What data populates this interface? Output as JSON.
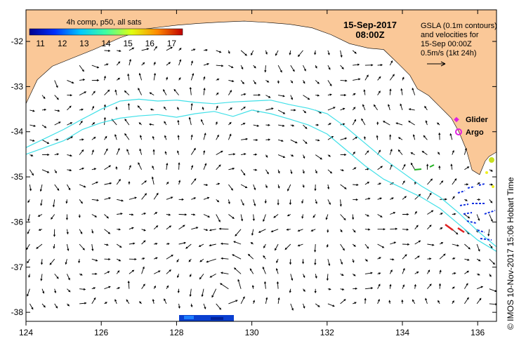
{
  "title": {
    "date": "15-Sep-2017",
    "time": "08:00Z"
  },
  "colorbar": {
    "label": "4h comp, p50, all sats",
    "ticks": [
      "11",
      "12",
      "13",
      "14",
      "15",
      "16",
      "17"
    ],
    "min": 10.5,
    "max": 17.5,
    "stops": [
      "#00008f",
      "#0030ff",
      "#00c8ff",
      "#40ff9f",
      "#e0ff10",
      "#ff8a00",
      "#c00000"
    ]
  },
  "legend": {
    "lines": [
      "GSLA (0.1m contours)",
      "and velocities for",
      "15-Sep 00:00Z",
      "0.5m/s (1kt 24h)"
    ],
    "glider_label": "Glider",
    "argo_label": "Argo",
    "glider_color": "#e020e0",
    "argo_color": "#e020e0"
  },
  "copyright": "© IMOS 10-Nov-2017 15:06 Hobart Time",
  "axes": {
    "x_ticks": [
      124,
      126,
      128,
      130,
      132,
      134,
      136
    ],
    "y_ticks": [
      -32,
      -33,
      -34,
      -35,
      -36,
      -37,
      -38
    ],
    "x_labels": [
      "124",
      "126",
      "128",
      "130",
      "132",
      "134",
      "136"
    ],
    "y_labels": [
      "-32",
      "-33",
      "-34",
      "-35",
      "-36",
      "-37",
      "-38"
    ],
    "lon_range": [
      124,
      136.5
    ],
    "lat_range": [
      -31.3,
      -38.2
    ]
  },
  "colors": {
    "land": "#fac898",
    "contour": "#40e0e8",
    "arrow": "#000000"
  },
  "coast": [
    [
      124,
      -33.38
    ],
    [
      124.3,
      -32.85
    ],
    [
      124.7,
      -32.55
    ],
    [
      125.2,
      -32.38
    ],
    [
      125.8,
      -32.18
    ],
    [
      126.5,
      -31.92
    ],
    [
      127.2,
      -31.72
    ],
    [
      128.0,
      -31.64
    ],
    [
      128.6,
      -31.6
    ],
    [
      129.2,
      -31.57
    ],
    [
      129.8,
      -31.55
    ],
    [
      130.4,
      -31.58
    ],
    [
      131.0,
      -31.62
    ],
    [
      131.6,
      -31.7
    ],
    [
      132.1,
      -31.85
    ],
    [
      132.6,
      -32.05
    ],
    [
      133.1,
      -32.15
    ],
    [
      133.5,
      -32.18
    ],
    [
      133.9,
      -32.5
    ],
    [
      134.2,
      -32.75
    ],
    [
      134.4,
      -33.05
    ],
    [
      134.7,
      -33.2
    ],
    [
      135.0,
      -33.45
    ],
    [
      135.3,
      -33.7
    ],
    [
      135.5,
      -34.0
    ],
    [
      135.7,
      -34.4
    ],
    [
      135.85,
      -34.85
    ],
    [
      136.05,
      -34.95
    ],
    [
      136.2,
      -34.65
    ],
    [
      136.3,
      -34.55
    ],
    [
      136.5,
      -34.45
    ]
  ],
  "contours": [
    [
      [
        124,
        -34.35
      ],
      [
        124.5,
        -34.15
      ],
      [
        125,
        -33.95
      ],
      [
        125.5,
        -33.72
      ],
      [
        126,
        -33.5
      ],
      [
        126.5,
        -33.32
      ],
      [
        127,
        -33.28
      ],
      [
        127.5,
        -33.32
      ],
      [
        128,
        -33.3
      ],
      [
        128.5,
        -33.35
      ],
      [
        129,
        -33.38
      ],
      [
        129.5,
        -33.34
      ],
      [
        130,
        -33.32
      ],
      [
        130.5,
        -33.3
      ],
      [
        131,
        -33.4
      ],
      [
        131.5,
        -33.48
      ],
      [
        132,
        -33.6
      ],
      [
        132.5,
        -33.9
      ],
      [
        133,
        -34.25
      ],
      [
        133.5,
        -34.6
      ],
      [
        134,
        -34.9
      ],
      [
        134.5,
        -35.2
      ],
      [
        135,
        -35.45
      ],
      [
        135.5,
        -35.8
      ],
      [
        136,
        -36.2
      ],
      [
        136.5,
        -36.55
      ]
    ],
    [
      [
        124,
        -34.5
      ],
      [
        124.5,
        -34.35
      ],
      [
        125,
        -34.2
      ],
      [
        125.5,
        -33.95
      ],
      [
        126,
        -33.8
      ],
      [
        126.5,
        -33.7
      ],
      [
        127,
        -33.65
      ],
      [
        127.5,
        -33.62
      ],
      [
        128,
        -33.68
      ],
      [
        128.5,
        -33.6
      ],
      [
        129,
        -33.55
      ],
      [
        129.5,
        -33.66
      ],
      [
        130,
        -33.52
      ],
      [
        130.5,
        -33.6
      ],
      [
        131,
        -33.72
      ],
      [
        131.5,
        -33.85
      ],
      [
        132,
        -34.05
      ],
      [
        132.5,
        -34.4
      ],
      [
        133,
        -34.75
      ],
      [
        133.5,
        -35.05
      ],
      [
        134,
        -35.25
      ],
      [
        134.5,
        -35.45
      ],
      [
        135,
        -35.7
      ],
      [
        135.5,
        -36.05
      ],
      [
        136,
        -36.4
      ],
      [
        136.5,
        -36.65
      ]
    ]
  ]
}
